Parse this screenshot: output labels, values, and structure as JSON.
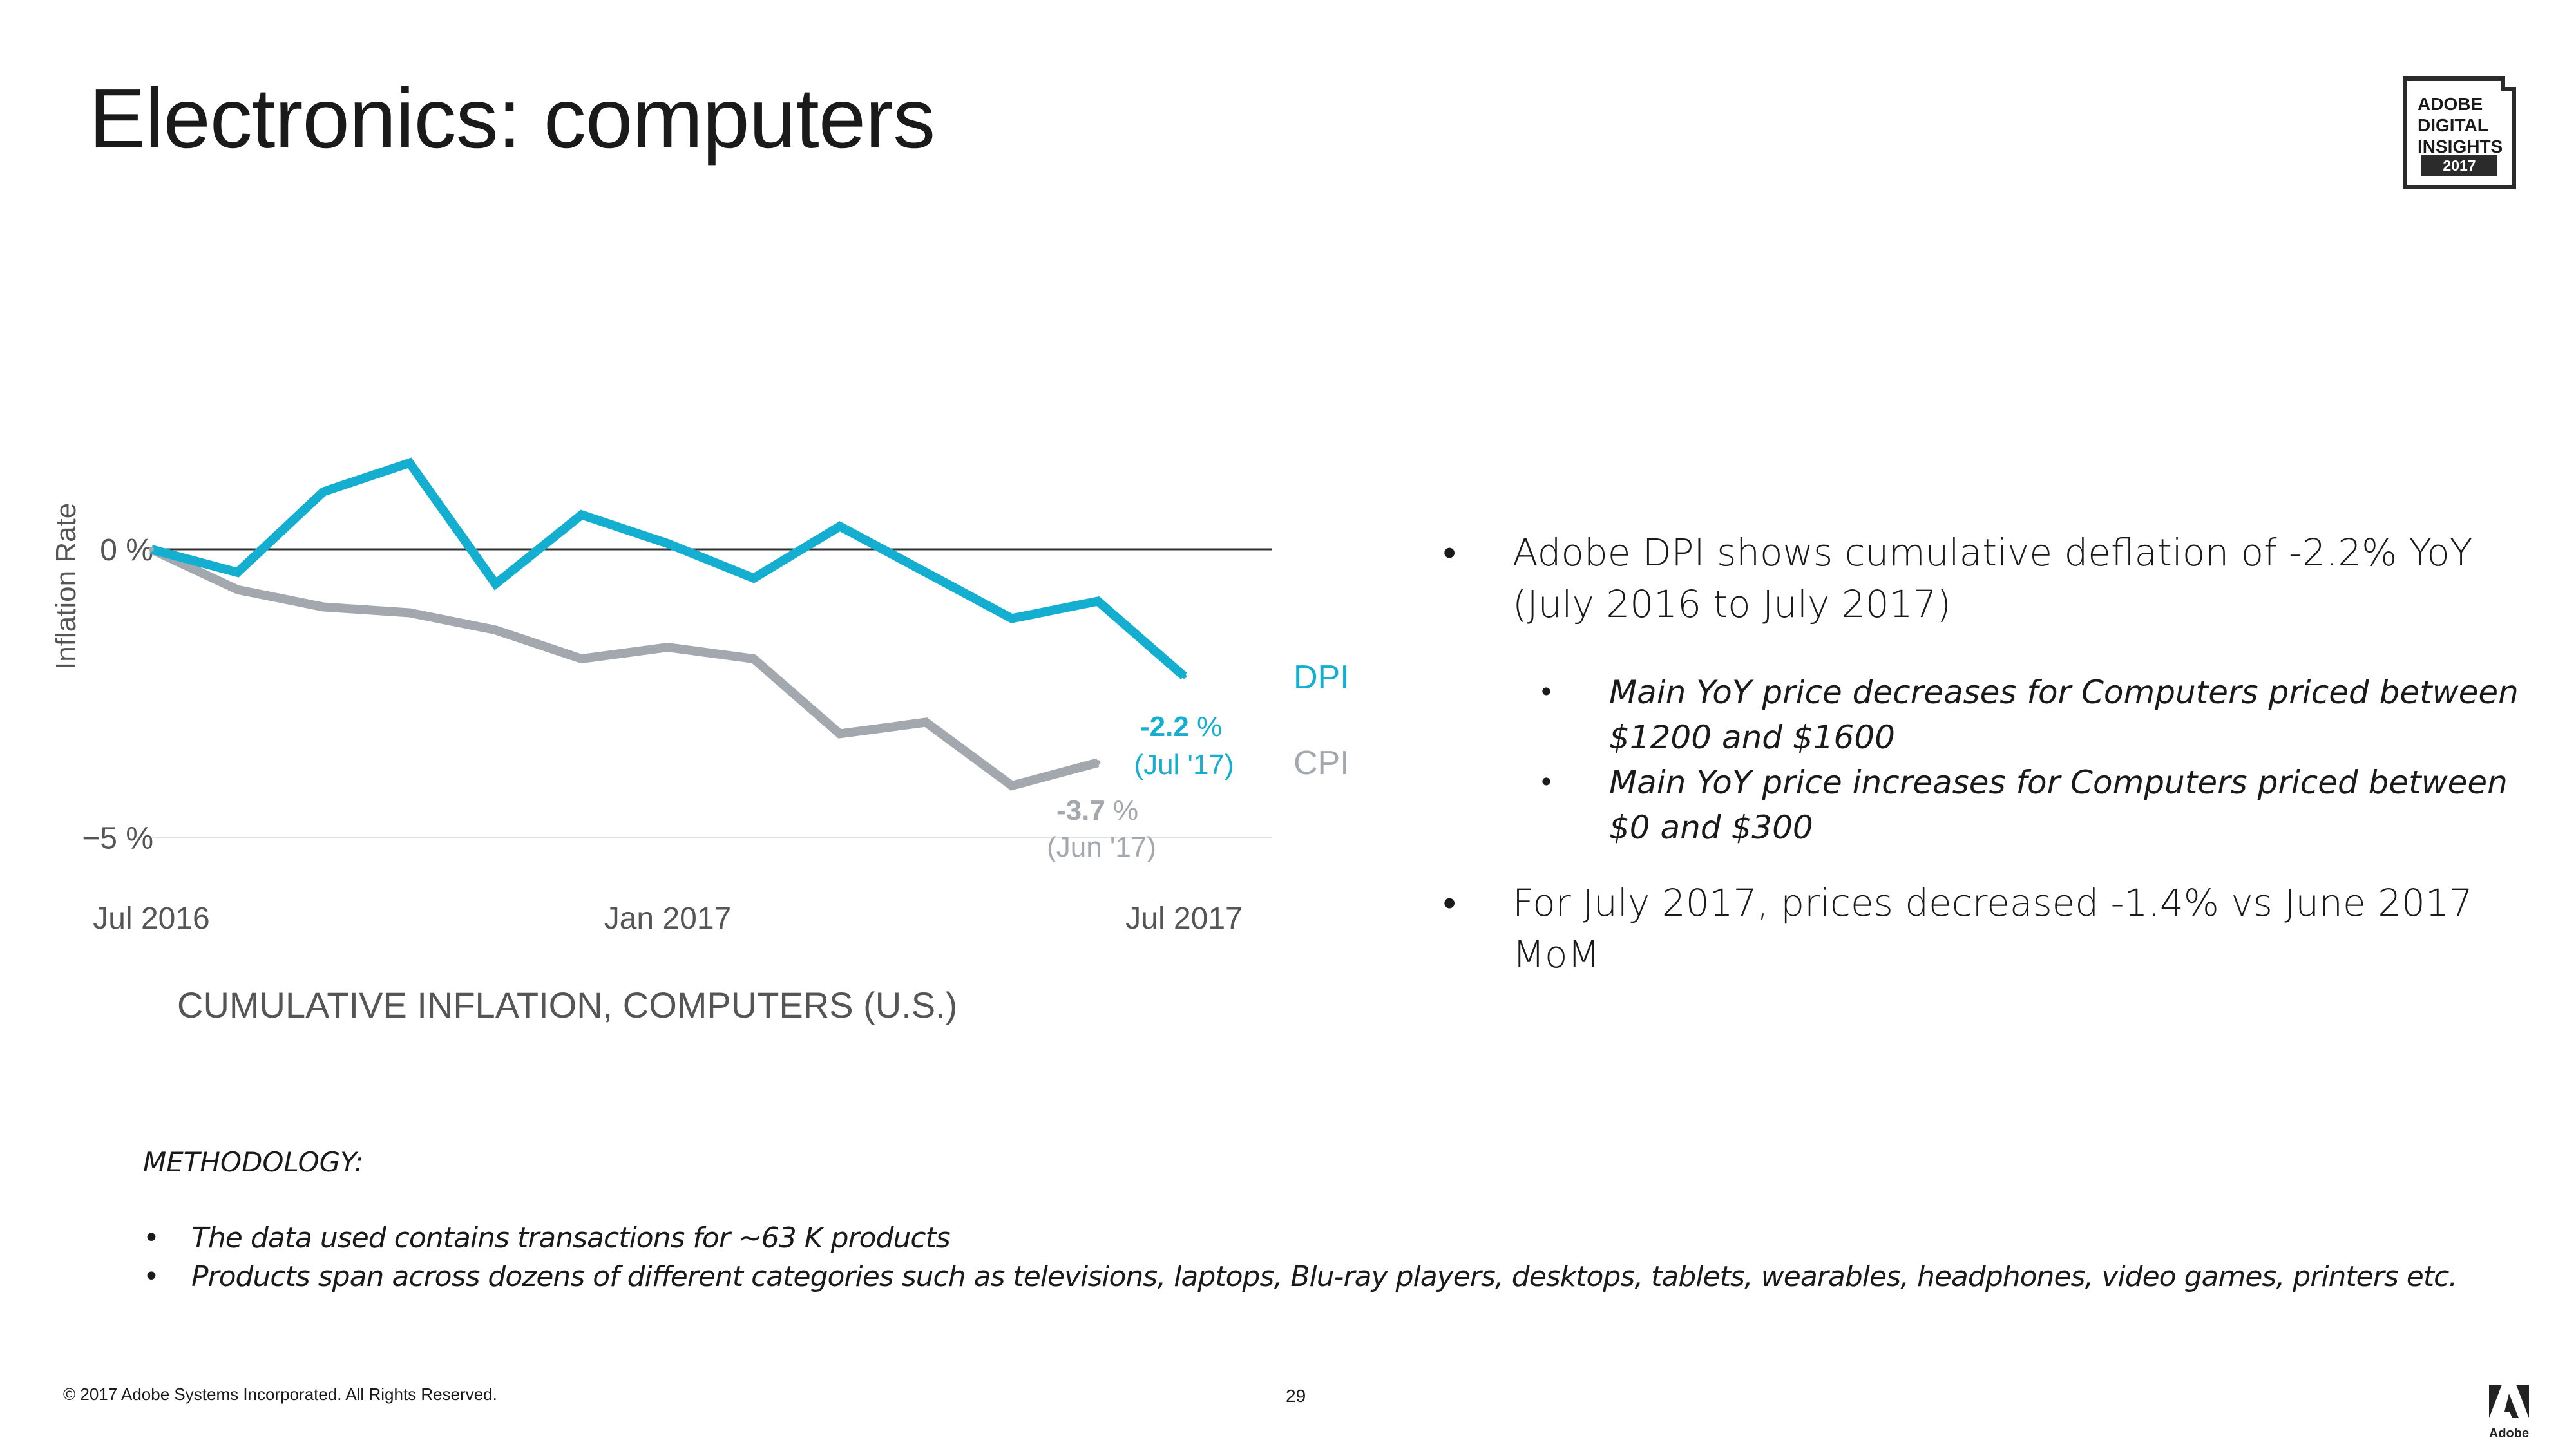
{
  "title": "Electronics: computers",
  "badge": {
    "lines": [
      "ADOBE",
      "DIGITAL",
      "INSIGHTS"
    ],
    "year": "2017"
  },
  "chart_data": {
    "type": "line",
    "title": "CUMULATIVE INFLATION, COMPUTERS (U.S.)",
    "ylabel": "Inflation Rate",
    "xlabel": "",
    "ylim": [
      -5.5,
      1.5
    ],
    "x": [
      "Jul 2016",
      "Aug 2016",
      "Sep 2016",
      "Oct 2016",
      "Nov 2016",
      "Dec 2016",
      "Jan 2017",
      "Feb 2017",
      "Mar 2017",
      "Apr 2017",
      "May 2017",
      "Jun 2017",
      "Jul 2017"
    ],
    "x_ticks": [
      "Jul 2016",
      "Jan 2017",
      "Jul 2017"
    ],
    "y_ticks": [
      {
        "value": 0,
        "label": "0 %"
      },
      {
        "value": -5,
        "label": "−5 %"
      }
    ],
    "series": [
      {
        "name": "DPI",
        "color": "#13aed0",
        "values": [
          0,
          -0.4,
          1.0,
          1.5,
          -0.6,
          0.6,
          0.1,
          -0.5,
          0.4,
          -0.4,
          -1.2,
          -0.9,
          -2.2
        ]
      },
      {
        "name": "CPI",
        "color": "#a3a8af",
        "values": [
          0,
          -0.7,
          -1.0,
          -1.1,
          -1.4,
          -1.9,
          -1.7,
          -1.9,
          -3.2,
          -3.0,
          -4.1,
          -3.7,
          null
        ]
      }
    ],
    "annotations": [
      {
        "series": "DPI",
        "value": "-2.2",
        "unit": " %",
        "period": "(Jul '17)"
      },
      {
        "series": "CPI",
        "value": "-3.7",
        "unit": " %",
        "period": "(Jun '17)"
      }
    ]
  },
  "bullets": [
    {
      "text": "Adobe DPI shows cumulative deflation of -2.2% YoY (July 2016 to July 2017)",
      "sub": [
        "Main YoY price decreases for Computers priced between $1200 and $1600",
        "Main YoY price increases for Computers priced between $0 and $300"
      ]
    },
    {
      "text": "For July 2017, prices decreased -1.4% vs June 2017 MoM",
      "sub": []
    }
  ],
  "bullet_glyph": "•",
  "methodology": {
    "title": "METHODOLOGY:",
    "items": [
      "The data used contains transactions for ~63 K products",
      "Products span across dozens of different categories such as televisions, laptops, Blu-ray players, desktops, tablets, wearables, headphones, video games, printers etc."
    ]
  },
  "footer": "© 2017 Adobe Systems Incorporated.  All Rights Reserved.",
  "page_number": "29",
  "logo_label": "Adobe"
}
